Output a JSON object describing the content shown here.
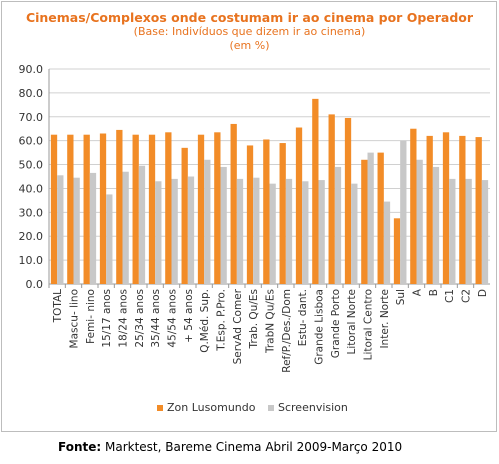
{
  "chart_data": {
    "type": "bar",
    "title": "Cinemas/Complexos onde costumam ir ao cinema por Operador",
    "subtitle": "(Base: Indivíduos que dizem ir ao cinema)",
    "unit_note": "(em %)",
    "xlabel": "",
    "ylabel": "",
    "ylim": [
      0,
      90
    ],
    "yticks": [
      "0.0",
      "10.0",
      "20.0",
      "30.0",
      "40.0",
      "50.0",
      "60.0",
      "70.0",
      "80.0",
      "90.0"
    ],
    "grid": true,
    "legend_position": "bottom",
    "categories": [
      "TOTAL",
      "Mascu- lino",
      "Femi- nino",
      "15/17 anos",
      "18/24 anos",
      "25/34 anos",
      "35/44 anos",
      "45/54 anos",
      "+ 54  anos",
      "Q.Méd. Sup.",
      "T.Esp. P.Pro.",
      "ServAd Comer",
      "Trab. Qu/Es",
      "TrabN Qu/Es",
      "Ref/P./Des./Dom",
      "Estu- dant.",
      "Grande Lisboa",
      "Grande Porto",
      "Litoral Norte",
      "Litoral Centro",
      "Inter. Norte",
      "Sul",
      "A",
      "B",
      "C1",
      "C2",
      "D"
    ],
    "series": [
      {
        "name": "Zon Lusomundo",
        "color": "#f28c28",
        "values": [
          62.5,
          62.5,
          62.5,
          63.0,
          64.5,
          62.5,
          62.5,
          63.5,
          57.0,
          62.5,
          63.5,
          67.0,
          58.0,
          60.5,
          59.0,
          65.5,
          77.5,
          71.0,
          69.5,
          52.0,
          55.0,
          27.5,
          65.0,
          62.0,
          63.5,
          62.0,
          61.5
        ]
      },
      {
        "name": "Screenvision",
        "color": "#c8c8c8",
        "values": [
          45.5,
          44.5,
          46.5,
          37.5,
          47.0,
          49.5,
          43.0,
          44.0,
          45.0,
          52.0,
          49.0,
          44.0,
          44.5,
          42.0,
          44.0,
          43.0,
          43.5,
          49.0,
          42.0,
          55.0,
          34.5,
          60.0,
          52.0,
          49.0,
          44.0,
          44.0,
          43.5
        ]
      }
    ]
  },
  "source": {
    "label": "Fonte:",
    "text": " Marktest, Bareme Cinema Abril 2009-Março 2010"
  }
}
